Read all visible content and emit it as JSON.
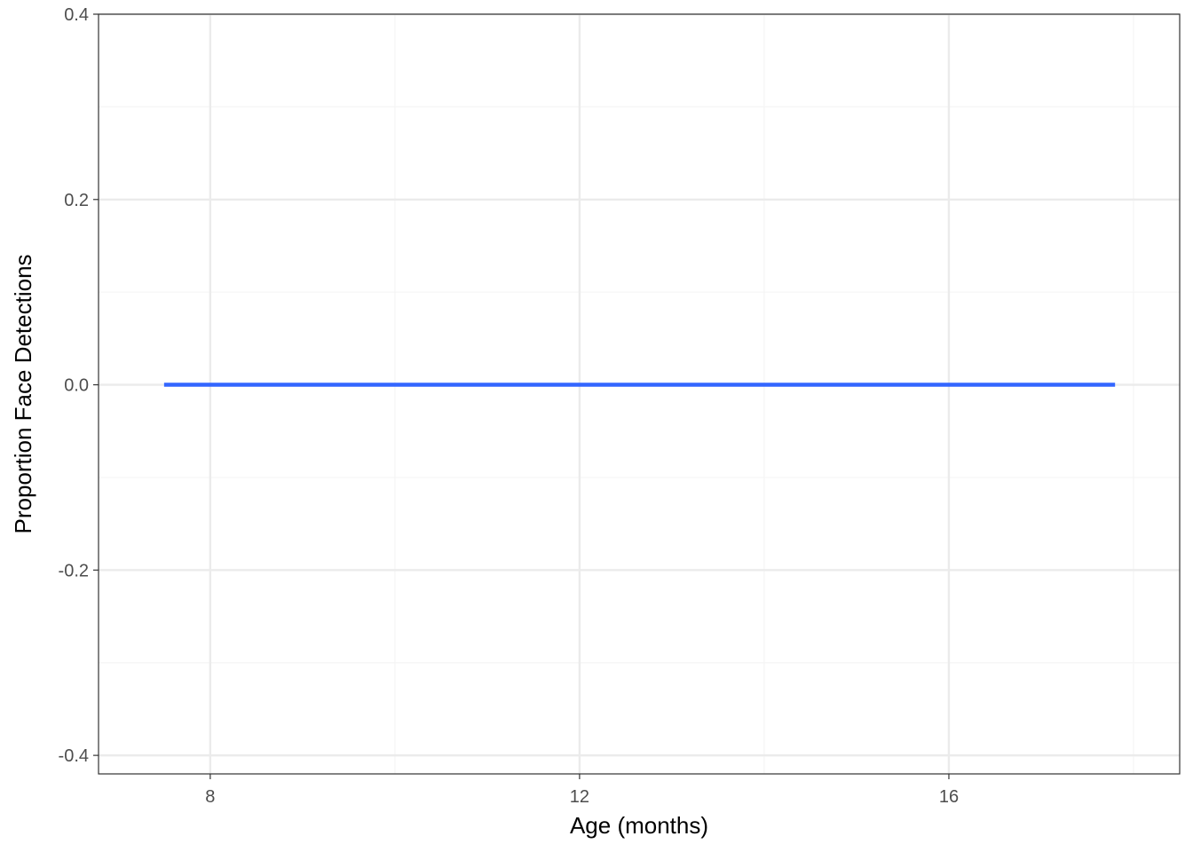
{
  "chart_data": {
    "type": "line",
    "title": "",
    "xlabel": "Age (months)",
    "ylabel": "Proportion Face Detections",
    "xlim": [
      6.79,
      18.5
    ],
    "ylim": [
      -0.42,
      0.4
    ],
    "x_ticks": [
      8,
      12,
      16
    ],
    "x_tick_labels": [
      "8",
      "12",
      "16"
    ],
    "x_minor_gridlines": [
      10,
      14,
      18
    ],
    "y_ticks": [
      -0.4,
      -0.2,
      0.0,
      0.2,
      0.4
    ],
    "y_tick_labels": [
      "-0.4",
      "-0.2",
      "0.0",
      "0.2",
      "0.4"
    ],
    "y_minor_gridlines": [
      -0.3,
      -0.1,
      0.1,
      0.3
    ],
    "grid": true,
    "legend": "none",
    "series": [
      {
        "color": "#3366ff",
        "x": [
          7.5,
          17.8
        ],
        "y": [
          0.0,
          0.0
        ]
      }
    ],
    "colors": {
      "panel_border": "#333333",
      "grid_major": "#ebebeb",
      "grid_minor": "#f5f5f5",
      "tick_text": "#4d4d4d"
    }
  }
}
